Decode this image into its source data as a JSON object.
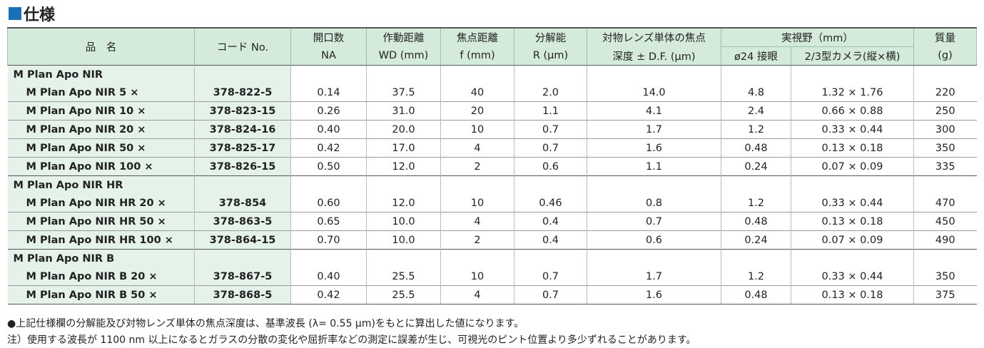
{
  "header": {
    "title": "仕様"
  },
  "table": {
    "header_top": [
      "品　名",
      "コード No.",
      "開口数",
      "作動距離",
      "焦点距離",
      "分解能",
      "対物レンズ単体の焦点",
      "実視野（mm）",
      "質量"
    ],
    "header_bottom": [
      "NA",
      "WD (mm)",
      "f (mm)",
      "R (μm)",
      "深度 ± D.F. (μm)",
      "ø24 接眼",
      "2/3型カメラ(縦×横)",
      "(g)"
    ],
    "groups": [
      {
        "name": "M Plan Apo NIR",
        "rows": [
          [
            "M Plan Apo NIR 5 ×",
            "378-822-5",
            "0.14",
            "37.5",
            "40",
            "2.0",
            "14.0",
            "4.8",
            "1.32 × 1.76",
            "220"
          ],
          [
            "M Plan Apo NIR 10 ×",
            "378-823-15",
            "0.26",
            "31.0",
            "20",
            "1.1",
            "4.1",
            "2.4",
            "0.66 × 0.88",
            "250"
          ],
          [
            "M Plan Apo NIR 20 ×",
            "378-824-16",
            "0.40",
            "20.0",
            "10",
            "0.7",
            "1.7",
            "1.2",
            "0.33 × 0.44",
            "300"
          ],
          [
            "M Plan Apo NIR 50 ×",
            "378-825-17",
            "0.42",
            "17.0",
            "4",
            "0.7",
            "1.6",
            "0.48",
            "0.13 × 0.18",
            "350"
          ],
          [
            "M Plan Apo NIR 100 ×",
            "378-826-15",
            "0.50",
            "12.0",
            "2",
            "0.6",
            "1.1",
            "0.24",
            "0.07 × 0.09",
            "335"
          ]
        ]
      },
      {
        "name": "M Plan Apo NIR HR",
        "rows": [
          [
            "M Plan Apo NIR HR 20 ×",
            "378-854",
            "0.60",
            "12.0",
            "10",
            "0.46",
            "0.8",
            "1.2",
            "0.33 × 0.44",
            "470"
          ],
          [
            "M Plan Apo NIR HR 50 ×",
            "378-863-5",
            "0.65",
            "10.0",
            "4",
            "0.4",
            "0.7",
            "0.48",
            "0.13 × 0.18",
            "450"
          ],
          [
            "M Plan Apo NIR HR 100 ×",
            "378-864-15",
            "0.70",
            "10.0",
            "2",
            "0.4",
            "0.6",
            "0.24",
            "0.07 × 0.09",
            "490"
          ]
        ]
      },
      {
        "name": "M Plan Apo NIR B",
        "rows": [
          [
            "M Plan Apo NIR B 20 ×",
            "378-867-5",
            "0.40",
            "25.5",
            "10",
            "0.7",
            "1.7",
            "1.2",
            "0.33 × 0.44",
            "350"
          ],
          [
            "M Plan Apo NIR B 50 ×",
            "378-868-5",
            "0.42",
            "25.5",
            "4",
            "0.7",
            "1.6",
            "0.48",
            "0.13 × 0.18",
            "375"
          ]
        ]
      }
    ]
  },
  "notes": [
    "●上記仕様欄の分解能及び対物レンズ単体の焦点深度は、基準波長 (λ= 0.55 μm)をもとに算出した値になります。",
    "注）使用する波長が 1100 nm 以上になるとガラスの分散の変化や屈折率などの測定に誤差が生じ、可視光のピント位置より多少ずれることがあります。"
  ]
}
